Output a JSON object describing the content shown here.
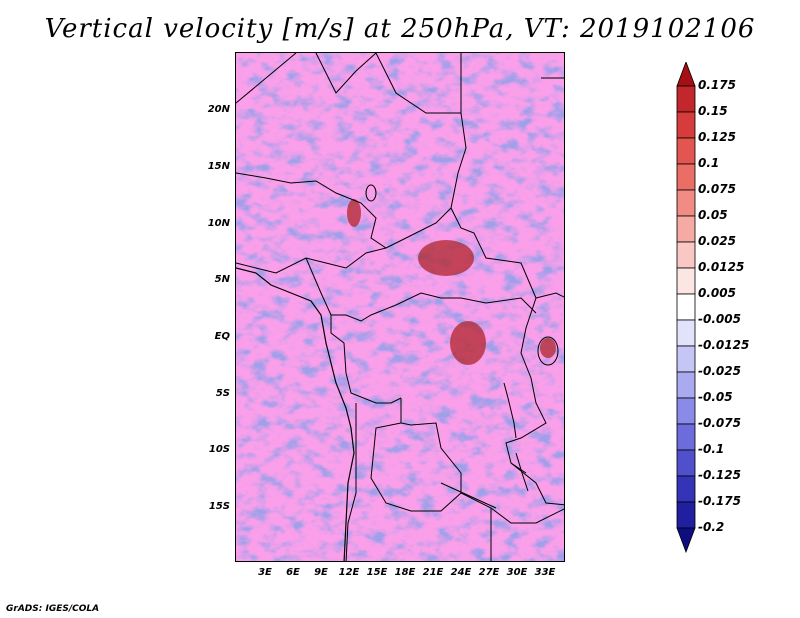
{
  "title": "Vertical velocity [m/s] at 250hPa, VT: 2019102106",
  "credit": "GrADS: IGES/COLA",
  "latitude_labels": [
    "20N",
    "15N",
    "10N",
    "5N",
    "EQ",
    "5S",
    "10S",
    "15S"
  ],
  "longitude_labels": [
    "3E",
    "6E",
    "9E",
    "12E",
    "15E",
    "18E",
    "21E",
    "24E",
    "27E",
    "30E",
    "33E"
  ],
  "colorbar": {
    "labels": [
      "0.175",
      "0.15",
      "0.125",
      "0.1",
      "0.075",
      "0.05",
      "0.025",
      "0.0125",
      "0.005",
      "-0.005",
      "-0.0125",
      "-0.025",
      "-0.05",
      "-0.075",
      "-0.1",
      "-0.125",
      "-0.175",
      "-0.2"
    ],
    "colors": [
      "#a50f15",
      "#c1272d",
      "#d73c3c",
      "#e25550",
      "#ea6e66",
      "#f08c84",
      "#f5aaa4",
      "#f9c8c4",
      "#fce6e4",
      "#ffffff",
      "#e2e2fb",
      "#c6c6f6",
      "#aaaaf0",
      "#8a8ae8",
      "#6c6cdc",
      "#5050cc",
      "#3434b8",
      "#1f1fa0",
      "#0e0e80"
    ]
  }
}
